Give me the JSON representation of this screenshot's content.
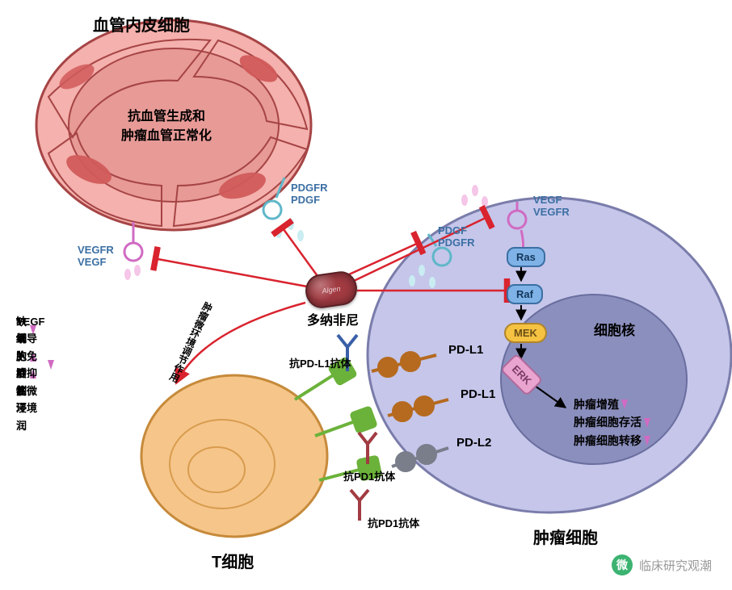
{
  "cells": {
    "endo": {
      "title": "血管内皮细胞",
      "center": "抗血管生成和\n肿瘤血管正常化",
      "body_fill": "#f4b1ad",
      "body_stroke": "#a64445",
      "inner_fill": "#e79a96",
      "nucleus_fill": "#d15b5b"
    },
    "tumor": {
      "title": "肿瘤细胞",
      "nucleus_label": "细胞核",
      "body_fill": "#c5c6ea",
      "body_stroke": "#7a7caa",
      "nucleus_fill": "#8b8fbe",
      "outcomes": [
        "肿瘤增殖",
        "肿瘤细胞存活",
        "肿瘤细胞转移"
      ],
      "outcome_color": "#7a7caa",
      "outcome_arrow": "#d06bc3"
    },
    "tcell": {
      "title": "T细胞",
      "body_fill": "#f6c58a",
      "body_stroke": "#c68a3a",
      "inner_stroke": "#d89c4e"
    }
  },
  "drug": {
    "name": "多纳非尼",
    "color": "#a23b42"
  },
  "receptors": {
    "vegfr_left": "VEGFR\nVEGF",
    "pdgfr_left": "PDGFR\nPDGF",
    "vegf_right": "VEGF\nVEGFR",
    "pdgf_right": "PDGF\nPDGFR"
  },
  "pathway": {
    "ras": {
      "label": "Ras",
      "fill": "#7fb3e8",
      "stroke": "#3b6fa3"
    },
    "raf": {
      "label": "Raf",
      "fill": "#7fb3e8",
      "stroke": "#3b6fa3"
    },
    "mek": {
      "label": "MEK",
      "fill": "#f5c242",
      "stroke": "#b0852a"
    },
    "erk": {
      "label": "ERK",
      "fill": "#e9a4d0",
      "stroke": "#b06a9b"
    }
  },
  "checkpoint": {
    "pdl1": "PD-L1",
    "pdl2": "PD-L2",
    "anti_pdl1": "抗PD-L1抗体",
    "anti_pd1": "抗PD1抗体",
    "pd1_color": "#6BB23A",
    "pdl1_color": "#b56a1f",
    "pdl2_color": "#7a7d8a",
    "antibody_color": "#3a5fa8",
    "antibody2_color": "#a23b42"
  },
  "tme_arrow_label": "肿瘤微环境调节作用",
  "tme_effects": [
    {
      "text": "T细胞活性",
      "dir": "up",
      "color": "#d06bc3"
    },
    {
      "text": "T细胞肿瘤浸润",
      "dir": "up",
      "color": "#d06bc3"
    },
    {
      "text": "缺氧",
      "dir": "down",
      "color": "#d06bc3"
    },
    {
      "text": "VEGF诱导的免疫抑制微环境",
      "dir": "down",
      "color": "#d06bc3"
    }
  ],
  "inhibit_color": "#d9232e",
  "watermark": {
    "text": "临床研究观潮",
    "color": "#999"
  },
  "label_colors": {
    "receptor_txt": "#3b6fa3",
    "title_txt": "#000"
  }
}
